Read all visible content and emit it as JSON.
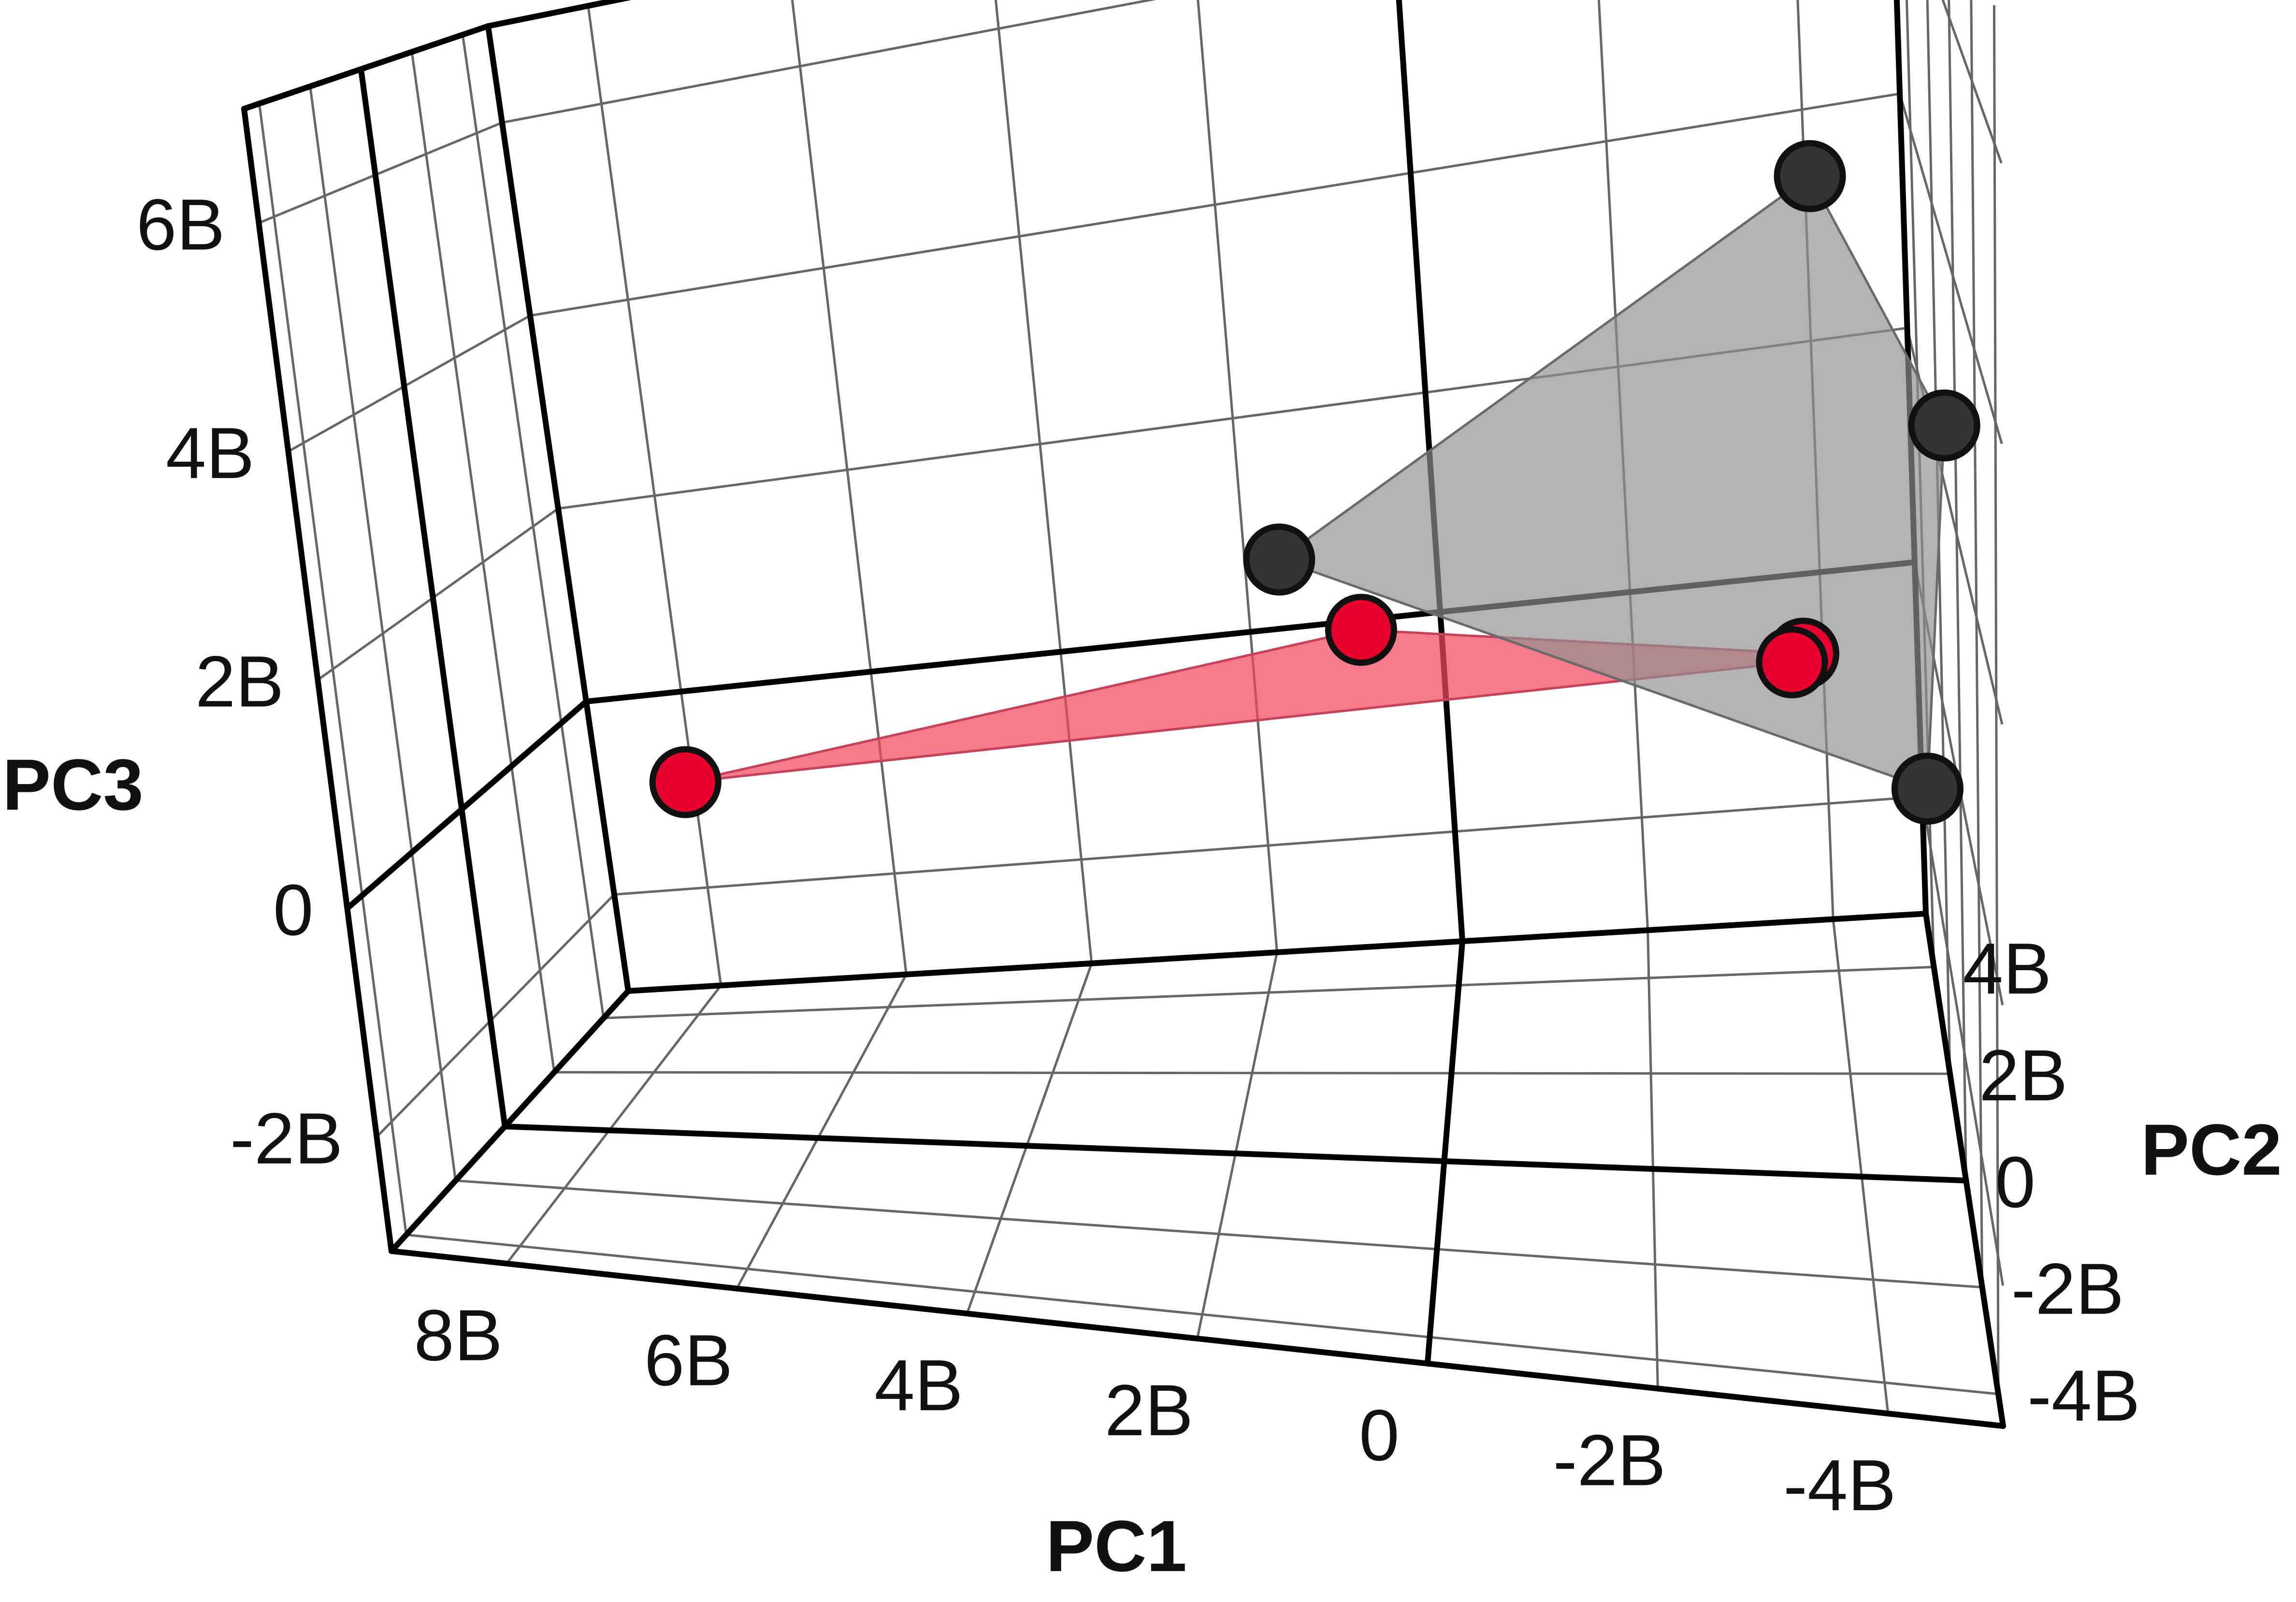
{
  "chart_data": {
    "type": "scatter",
    "projection": "3d",
    "xlabel": "PC1",
    "ylabel": "PC2",
    "zlabel": "PC3",
    "x_ticks": [
      "8B",
      "6B",
      "4B",
      "2B",
      "0",
      "-2B",
      "-4B"
    ],
    "y_ticks": [
      "-4B",
      "-2B",
      "0",
      "2B",
      "4B"
    ],
    "z_ticks": [
      "6B",
      "4B",
      "2B",
      "0",
      "-2B"
    ],
    "xlim": [
      -5,
      9
    ],
    "ylim": [
      -4.6,
      5
    ],
    "zlim": [
      -3,
      7
    ],
    "grid": true,
    "series": [
      {
        "color": "#e8002f",
        "plane_color": "#f0485f",
        "points": [
          {
            "x": 7.1,
            "y": 1.0,
            "z": 0.0
          },
          {
            "x": 0.4,
            "y": -2.2,
            "z": 2.0
          },
          {
            "x": -3.4,
            "y": -3.6,
            "z": 2.2
          },
          {
            "x": -3.6,
            "y": 3.3,
            "z": -0.1
          }
        ]
      },
      {
        "color": "#333333",
        "plane_color": "#8f8f8f",
        "points": [
          {
            "x": 1.1,
            "y": -1.9,
            "z": 2.5
          },
          {
            "x": -3.5,
            "y": -3.9,
            "z": 5.8
          },
          {
            "x": -4.6,
            "y": -3.7,
            "z": 3.9
          },
          {
            "x": -4.7,
            "y": 0.1,
            "z": 0.0
          }
        ]
      }
    ]
  }
}
